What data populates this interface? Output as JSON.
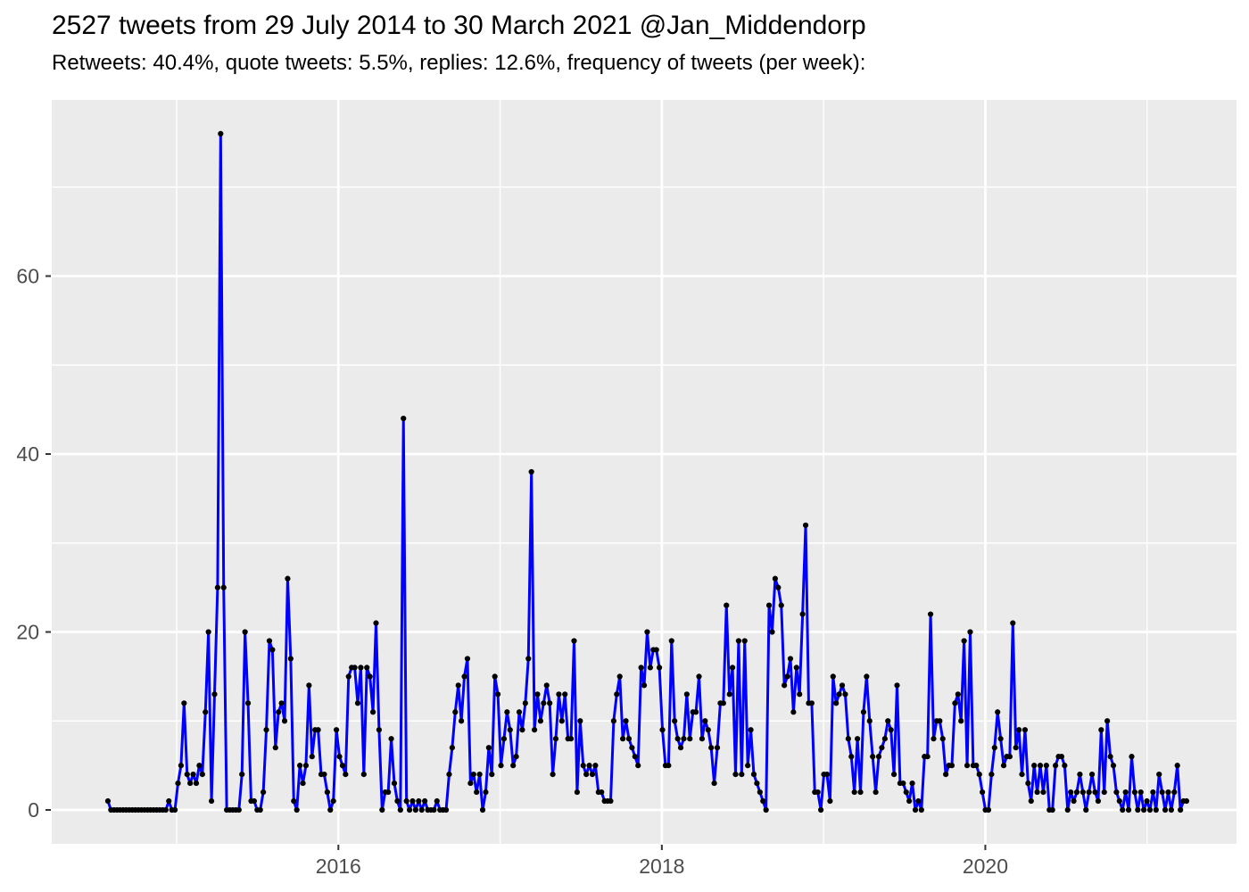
{
  "header": {
    "title": "2527 tweets from 29 July 2014 to 30 March 2021 @Jan_Middendorp",
    "subtitle": "Retweets: 40.4%, quote tweets: 5.5%, replies: 12.6%, frequency of tweets (per week):"
  },
  "chart_data": {
    "type": "line",
    "title": "2527 tweets from 29 July 2014 to 30 March 2021 @Jan_Middendorp",
    "subtitle": "Retweets: 40.4%, quote tweets: 5.5%, replies: 12.6%, frequency of tweets (per week):",
    "xlabel": "",
    "ylabel": "",
    "legend": "none",
    "grid": "on",
    "stats": {
      "total_tweets": 2527,
      "retweets_pct": 40.4,
      "quote_tweets_pct": 5.5,
      "replies_pct": 12.6
    },
    "x_start_date": "29 July 2014",
    "x_end_date": "30 March 2021",
    "x_start_year_decimal": 2014.575,
    "x_end_year_decimal": 2021.244,
    "x_tick_labels": [
      "2016",
      "2018",
      "2020"
    ],
    "x_tick_years": [
      2016,
      2018,
      2020
    ],
    "x_minor_years": [
      2015,
      2017,
      2019,
      2021
    ],
    "y_tick_labels": [
      "0",
      "20",
      "40",
      "60"
    ],
    "y_tick_values": [
      0,
      20,
      40,
      60
    ],
    "y_minor_values": [
      10,
      30,
      50,
      70
    ],
    "ylim": [
      -3.8,
      79.8
    ],
    "colors": {
      "panel_bg": "#EBEBEB",
      "grid": "#FFFFFF",
      "line": "#0000FF",
      "point": "#000000",
      "axis_text": "#4D4D4D",
      "tick_mark": "#333333",
      "title_text": "#000000"
    },
    "series": [
      {
        "name": "tweets per week",
        "values": [
          1,
          0,
          0,
          0,
          0,
          0,
          0,
          0,
          0,
          0,
          0,
          0,
          0,
          0,
          0,
          0,
          0,
          0,
          0,
          0,
          1,
          0,
          0,
          3,
          5,
          12,
          4,
          3,
          4,
          3,
          5,
          4,
          11,
          20,
          1,
          13,
          25,
          76,
          25,
          0,
          0,
          0,
          0,
          0,
          4,
          20,
          12,
          1,
          1,
          0,
          0,
          2,
          9,
          19,
          18,
          7,
          11,
          12,
          10,
          26,
          17,
          1,
          0,
          5,
          3,
          5,
          14,
          6,
          9,
          9,
          4,
          4,
          2,
          0,
          1,
          9,
          6,
          5,
          4,
          15,
          16,
          16,
          12,
          16,
          4,
          16,
          15,
          11,
          21,
          9,
          0,
          2,
          2,
          8,
          3,
          1,
          0,
          44,
          1,
          0,
          1,
          0,
          1,
          0,
          1,
          0,
          0,
          0,
          1,
          0,
          0,
          0,
          4,
          7,
          11,
          14,
          10,
          15,
          17,
          3,
          4,
          2,
          4,
          0,
          2,
          7,
          4,
          15,
          13,
          5,
          8,
          11,
          9,
          5,
          6,
          11,
          9,
          12,
          17,
          38,
          9,
          13,
          10,
          12,
          14,
          12,
          4,
          8,
          13,
          10,
          13,
          8,
          8,
          19,
          2,
          10,
          5,
          4,
          5,
          4,
          5,
          2,
          2,
          1,
          1,
          1,
          10,
          13,
          15,
          8,
          10,
          8,
          7,
          6,
          5,
          16,
          14,
          20,
          16,
          18,
          18,
          16,
          9,
          5,
          5,
          19,
          10,
          8,
          7,
          8,
          13,
          8,
          11,
          11,
          15,
          8,
          10,
          9,
          7,
          3,
          7,
          12,
          12,
          23,
          13,
          16,
          4,
          19,
          4,
          19,
          5,
          9,
          4,
          3,
          2,
          1,
          0,
          23,
          20,
          26,
          25,
          23,
          14,
          15,
          17,
          11,
          16,
          13,
          22,
          32,
          12,
          12,
          2,
          2,
          0,
          4,
          4,
          1,
          15,
          12,
          13,
          14,
          13,
          8,
          6,
          2,
          8,
          2,
          11,
          15,
          10,
          6,
          2,
          6,
          7,
          8,
          10,
          9,
          4,
          14,
          3,
          3,
          2,
          1,
          3,
          0,
          1,
          0,
          6,
          6,
          22,
          8,
          10,
          10,
          8,
          4,
          5,
          5,
          12,
          13,
          10,
          19,
          5,
          20,
          5,
          5,
          4,
          2,
          0,
          0,
          4,
          7,
          11,
          8,
          5,
          6,
          6,
          21,
          7,
          9,
          4,
          9,
          3,
          1,
          5,
          2,
          5,
          2,
          5,
          0,
          0,
          5,
          6,
          6,
          5,
          0,
          2,
          1,
          2,
          4,
          2,
          0,
          2,
          4,
          2,
          1,
          9,
          2,
          10,
          6,
          5,
          2,
          1,
          0,
          2,
          0,
          6,
          2,
          0,
          2,
          0,
          1,
          0,
          2,
          0,
          4,
          2,
          0,
          2,
          0,
          2,
          5,
          0,
          1,
          1
        ]
      }
    ]
  }
}
